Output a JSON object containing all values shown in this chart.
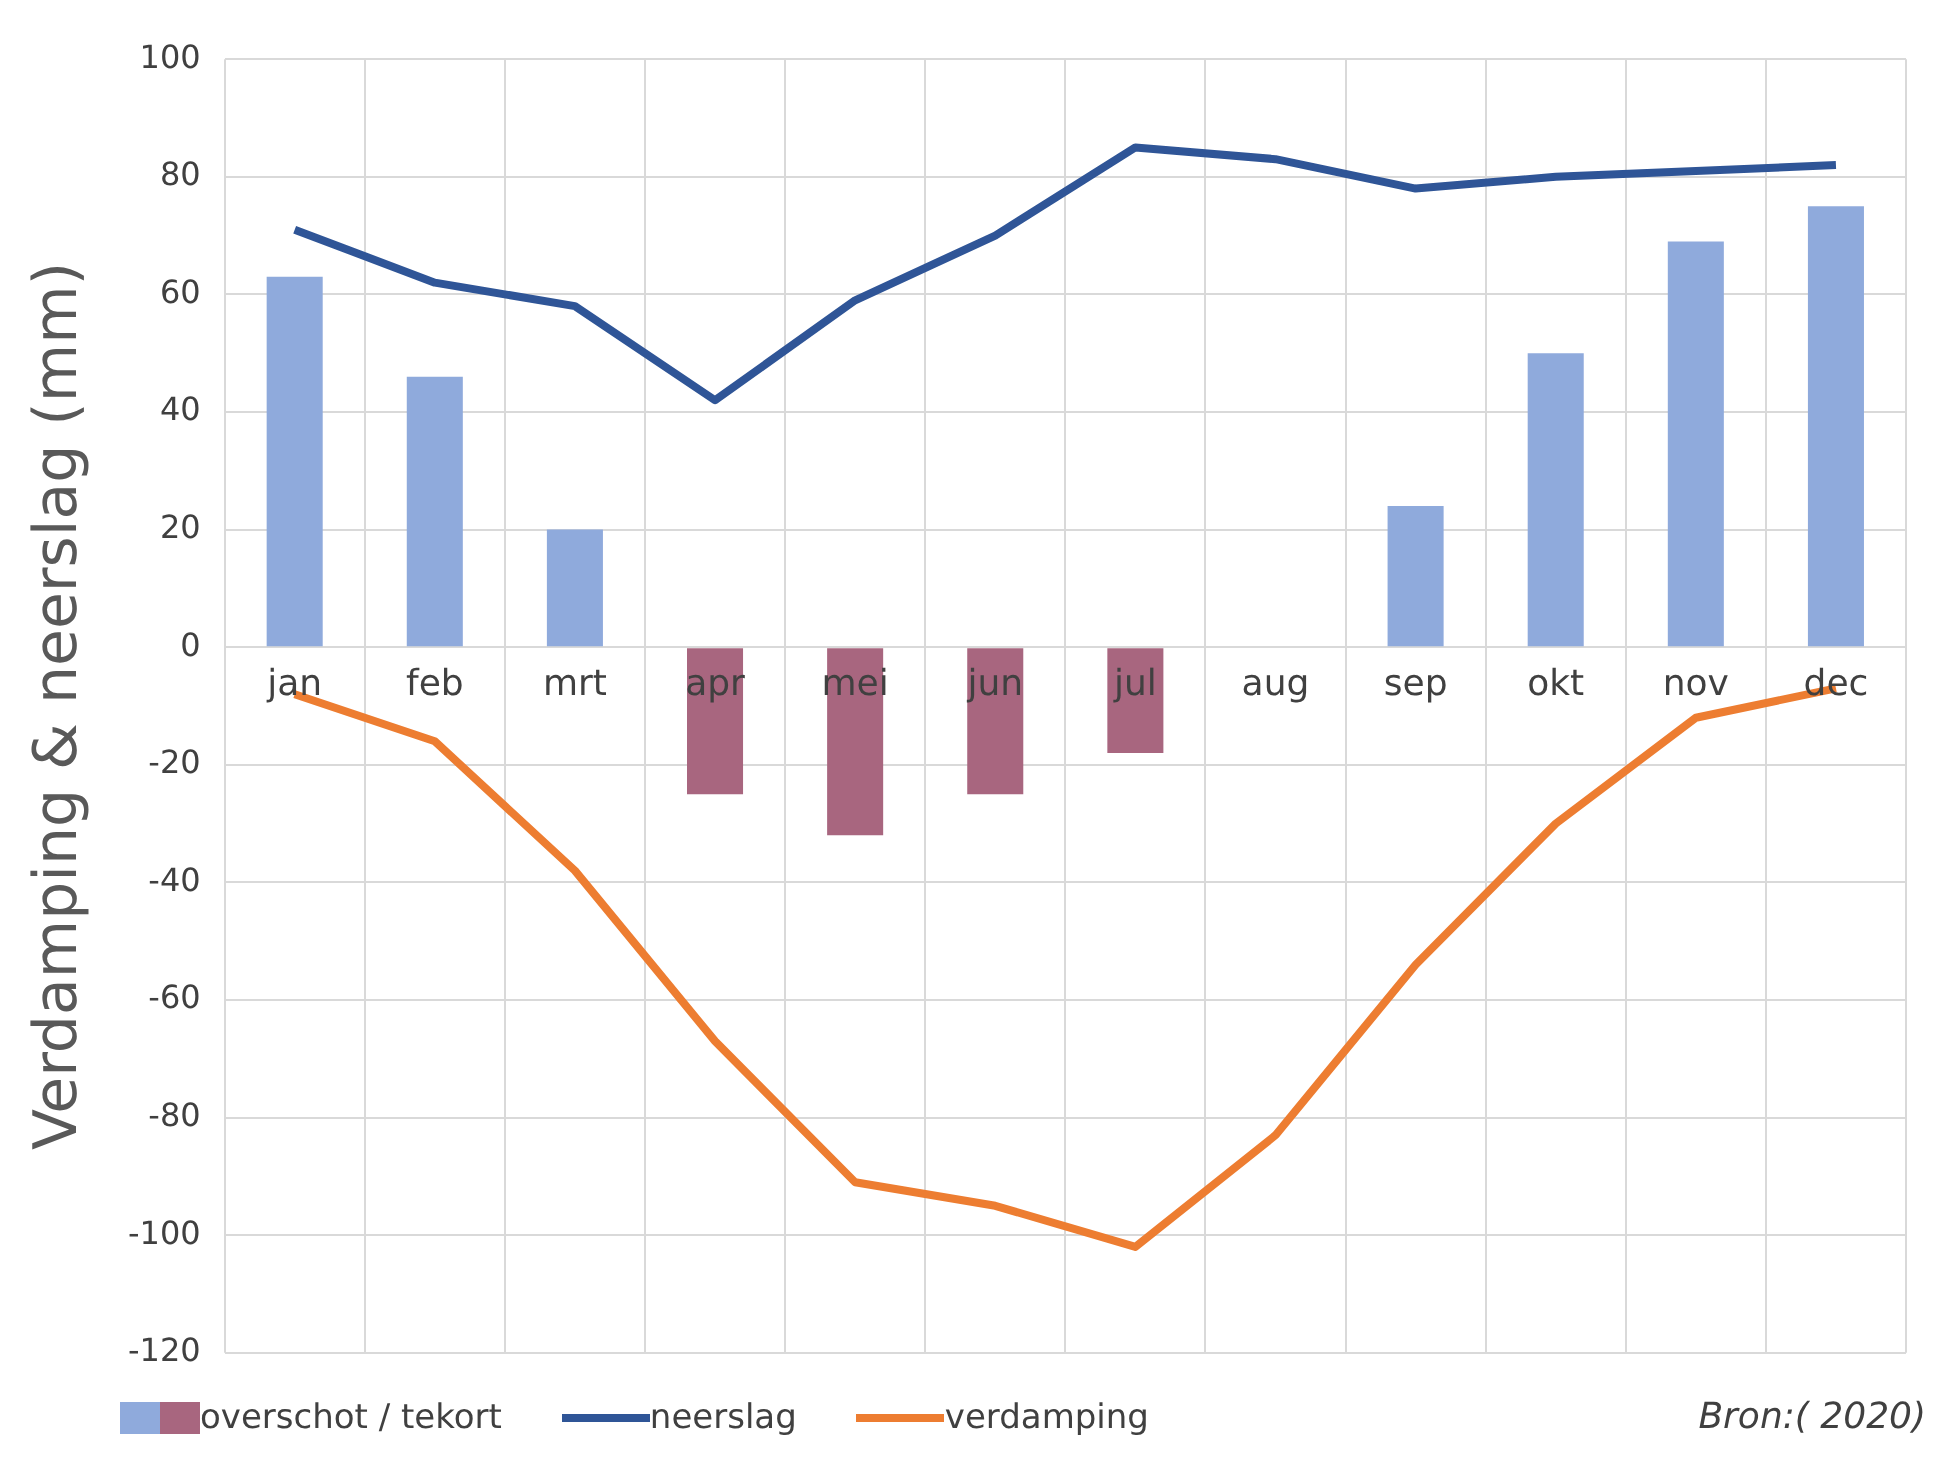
{
  "chart_data": {
    "type": "bar",
    "ylabel": "Verdamping & neerslag (mm)",
    "categories": [
      "jan",
      "feb",
      "mrt",
      "apr",
      "mei",
      "jun",
      "jul",
      "aug",
      "sep",
      "okt",
      "nov",
      "dec"
    ],
    "series": [
      {
        "name": "overschot / tekort",
        "values": [
          63,
          46,
          20,
          -25,
          -32,
          -25,
          -18,
          null,
          24,
          50,
          69,
          75
        ],
        "colors": [
          "#8faadc",
          "#8faadc",
          "#8faadc",
          "#a8667f",
          "#a8667f",
          "#a8667f",
          "#a8667f",
          "#8faadc",
          "#8faadc",
          "#8faadc",
          "#8faadc",
          "#8faadc"
        ]
      },
      {
        "name": "neerslag",
        "type": "line",
        "color": "#2f5597",
        "values": [
          71,
          62,
          58,
          42,
          59,
          70,
          85,
          83,
          78,
          80,
          81,
          82
        ]
      },
      {
        "name": "verdamping",
        "type": "line",
        "color": "#ed7d31",
        "values": [
          -8,
          -16,
          -38,
          -67,
          -91,
          -95,
          -102,
          -83,
          -54,
          -30,
          -12,
          -7
        ]
      }
    ],
    "ylim": [
      -120,
      100
    ],
    "yticks": [
      -120,
      -100,
      -80,
      -60,
      -40,
      -20,
      0,
      20,
      40,
      60,
      80,
      100
    ],
    "grid": true,
    "legend": "bottom",
    "annotations": [
      "Bron:( 2020)"
    ]
  }
}
